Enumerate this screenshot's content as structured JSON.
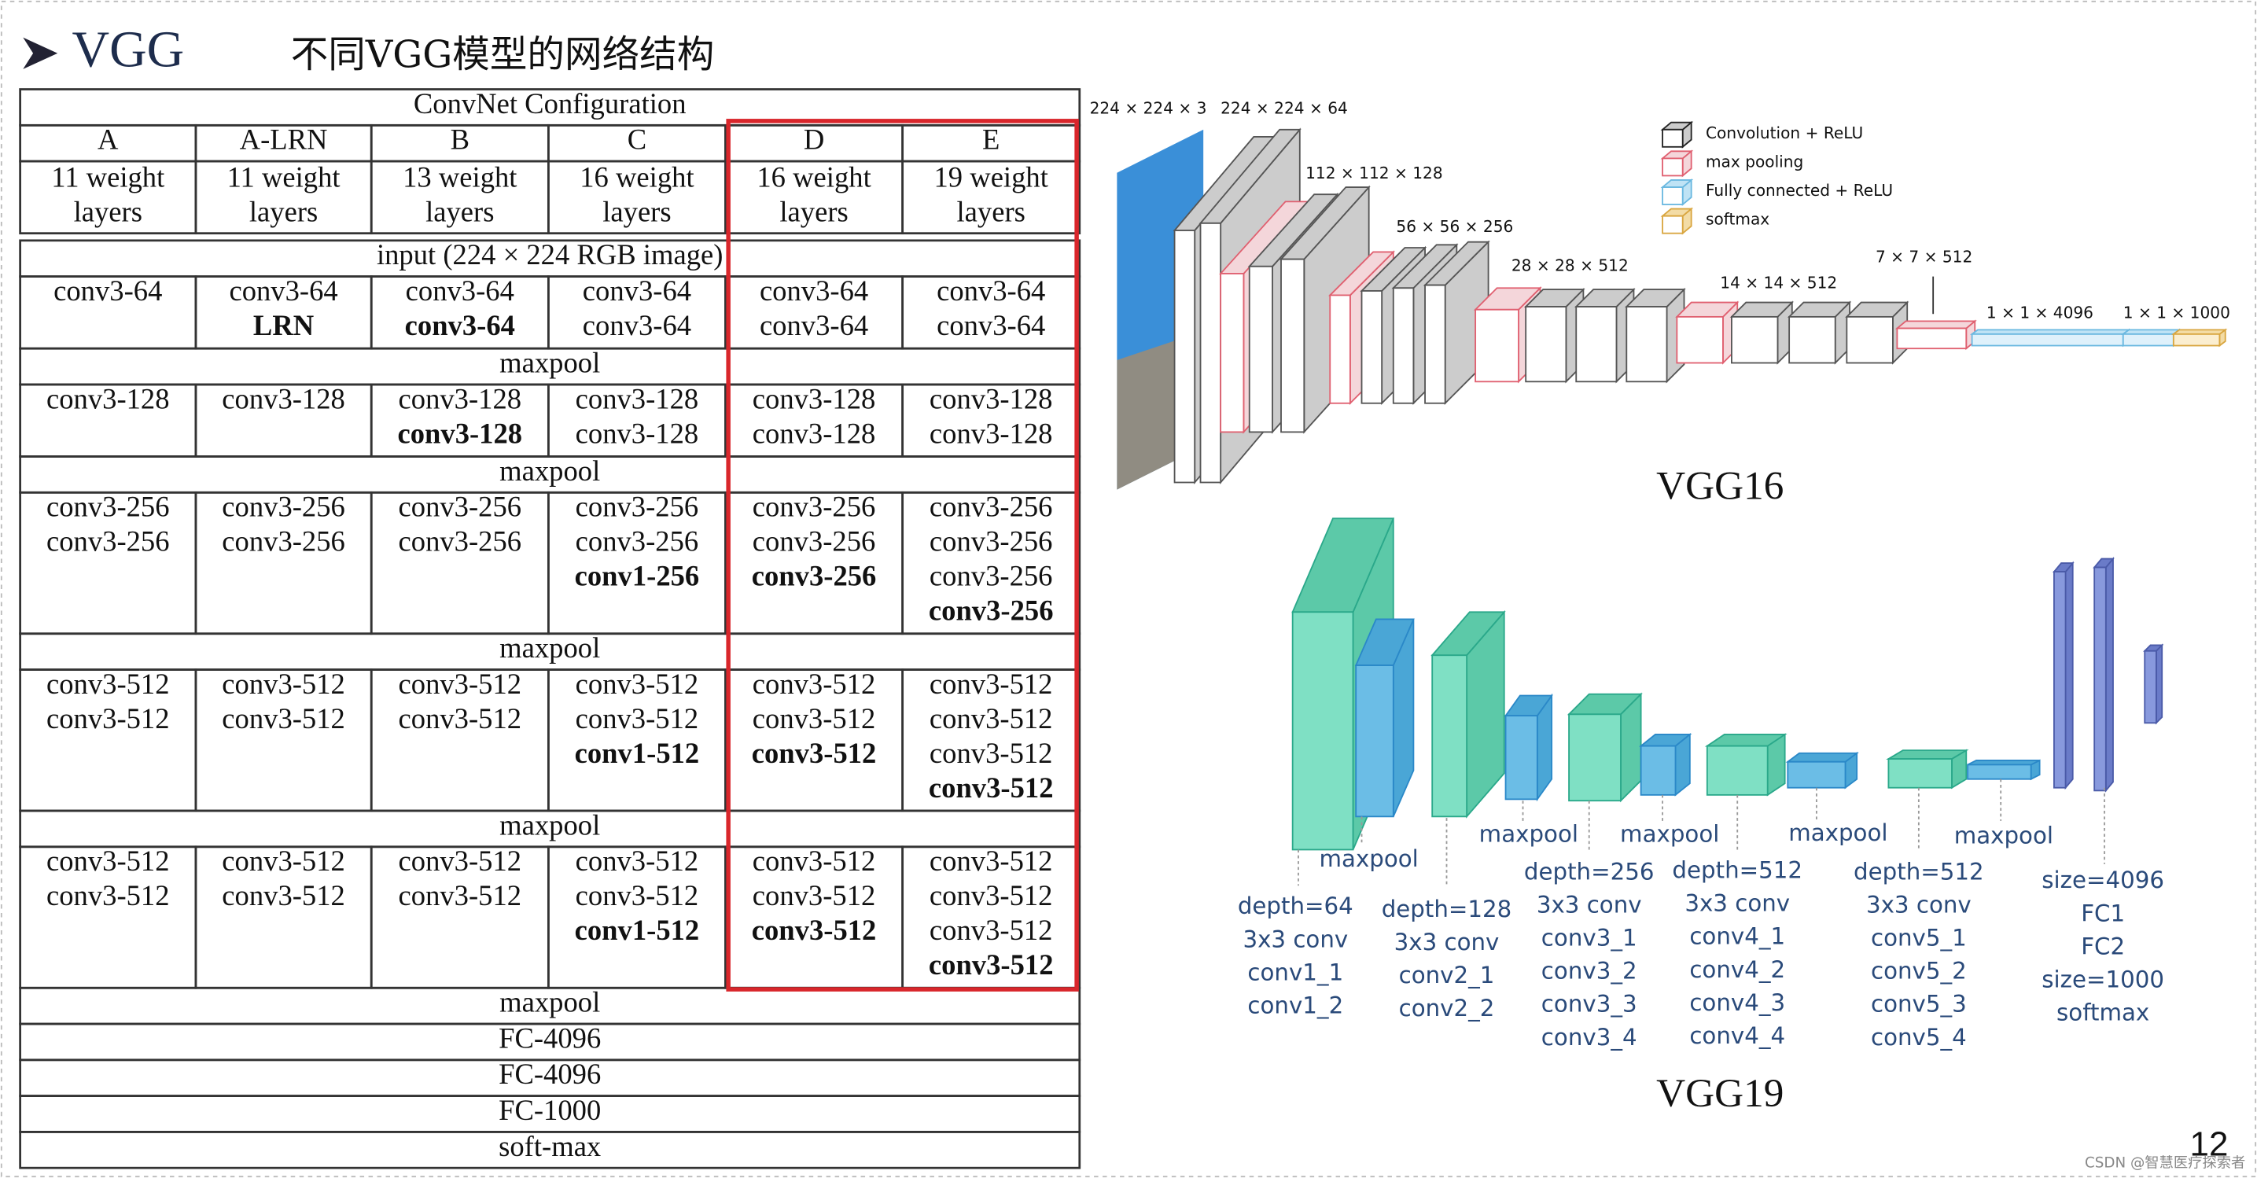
{
  "header": {
    "title": "VGG",
    "subtitle": "不同VGG模型的网络结构"
  },
  "table": {
    "caption": "ConvNet Configuration",
    "columns": [
      {
        "name": "A",
        "depth": [
          "11 weight",
          "layers"
        ]
      },
      {
        "name": "A-LRN",
        "depth": [
          "11 weight",
          "layers"
        ]
      },
      {
        "name": "B",
        "depth": [
          "13 weight",
          "layers"
        ]
      },
      {
        "name": "C",
        "depth": [
          "16 weight",
          "layers"
        ]
      },
      {
        "name": "D",
        "depth": [
          "16 weight",
          "layers"
        ]
      },
      {
        "name": "E",
        "depth": [
          "19 weight",
          "layers"
        ]
      }
    ],
    "input": "input (224 × 224 RGB image)",
    "rows": [
      {
        "cells": [
          [
            "conv3-64"
          ],
          [
            "conv3-64",
            {
              "text": "LRN",
              "bold": true
            }
          ],
          [
            "conv3-64",
            {
              "text": "conv3-64",
              "bold": true
            }
          ],
          [
            "conv3-64",
            "conv3-64"
          ],
          [
            "conv3-64",
            "conv3-64"
          ],
          [
            "conv3-64",
            "conv3-64"
          ]
        ]
      },
      {
        "span": "maxpool"
      },
      {
        "cells": [
          [
            "conv3-128"
          ],
          [
            "conv3-128"
          ],
          [
            "conv3-128",
            {
              "text": "conv3-128",
              "bold": true
            }
          ],
          [
            "conv3-128",
            "conv3-128"
          ],
          [
            "conv3-128",
            "conv3-128"
          ],
          [
            "conv3-128",
            "conv3-128"
          ]
        ]
      },
      {
        "span": "maxpool"
      },
      {
        "cells": [
          [
            "conv3-256",
            "conv3-256"
          ],
          [
            "conv3-256",
            "conv3-256"
          ],
          [
            "conv3-256",
            "conv3-256"
          ],
          [
            "conv3-256",
            "conv3-256",
            {
              "text": "conv1-256",
              "bold": true
            }
          ],
          [
            "conv3-256",
            "conv3-256",
            {
              "text": "conv3-256",
              "bold": true
            }
          ],
          [
            "conv3-256",
            "conv3-256",
            "conv3-256",
            {
              "text": "conv3-256",
              "bold": true
            }
          ]
        ]
      },
      {
        "span": "maxpool"
      },
      {
        "cells": [
          [
            "conv3-512",
            "conv3-512"
          ],
          [
            "conv3-512",
            "conv3-512"
          ],
          [
            "conv3-512",
            "conv3-512"
          ],
          [
            "conv3-512",
            "conv3-512",
            {
              "text": "conv1-512",
              "bold": true
            }
          ],
          [
            "conv3-512",
            "conv3-512",
            {
              "text": "conv3-512",
              "bold": true
            }
          ],
          [
            "conv3-512",
            "conv3-512",
            "conv3-512",
            {
              "text": "conv3-512",
              "bold": true
            }
          ]
        ]
      },
      {
        "span": "maxpool"
      },
      {
        "cells": [
          [
            "conv3-512",
            "conv3-512"
          ],
          [
            "conv3-512",
            "conv3-512"
          ],
          [
            "conv3-512",
            "conv3-512"
          ],
          [
            "conv3-512",
            "conv3-512",
            {
              "text": "conv1-512",
              "bold": true
            }
          ],
          [
            "conv3-512",
            "conv3-512",
            {
              "text": "conv3-512",
              "bold": true
            }
          ],
          [
            "conv3-512",
            "conv3-512",
            "conv3-512",
            {
              "text": "conv3-512",
              "bold": true
            }
          ]
        ]
      },
      {
        "span": "maxpool"
      },
      {
        "span": "FC-4096"
      },
      {
        "span": "FC-4096"
      },
      {
        "span": "FC-1000"
      },
      {
        "span": "soft-max"
      }
    ]
  },
  "vgg16": {
    "title": "VGG16",
    "sizes": [
      "224 × 224 × 3",
      "224 × 224 × 64",
      "112 × 112 × 128",
      "56 × 56 × 256",
      "28 × 28 × 512",
      "14 × 14 × 512",
      "7 × 7 × 512",
      "1 × 1 × 4096",
      "1 × 1 × 1000"
    ],
    "legend": [
      "Convolution + ReLU",
      "max pooling",
      "Fully connected + ReLU",
      "softmax"
    ]
  },
  "vgg19": {
    "title": "VGG19",
    "pool_labels": [
      "maxpool",
      "maxpool",
      "maxpool",
      "maxpool",
      "maxpool"
    ],
    "groups": [
      [
        "depth=64",
        "3x3 conv",
        "conv1_1",
        "conv1_2"
      ],
      [
        "depth=128",
        "3x3 conv",
        "conv2_1",
        "conv2_2"
      ],
      [
        "depth=256",
        "3x3 conv",
        "conv3_1",
        "conv3_2",
        "conv3_3",
        "conv3_4"
      ],
      [
        "depth=512",
        "3x3 conv",
        "conv4_1",
        "conv4_2",
        "conv4_3",
        "conv4_4"
      ],
      [
        "depth=512",
        "3x3 conv",
        "conv5_1",
        "conv5_2",
        "conv5_3",
        "conv5_4"
      ],
      [
        "size=4096",
        "FC1",
        "FC2",
        "size=1000",
        "softmax"
      ]
    ]
  },
  "page_number": "12",
  "watermark": "CSDN @智慧医疗探索者"
}
